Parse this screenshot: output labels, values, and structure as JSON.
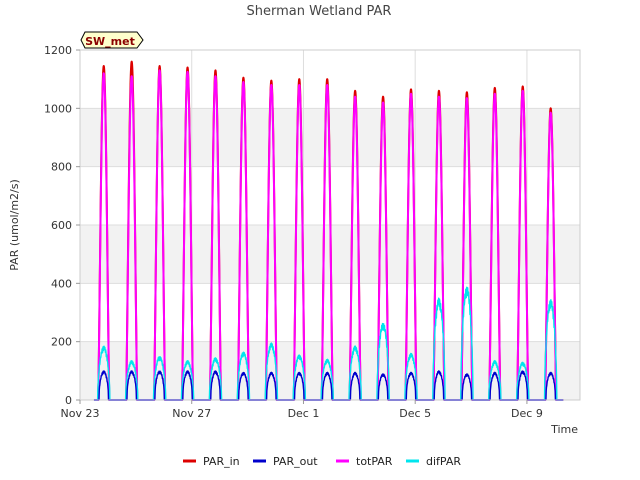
{
  "chart_data": {
    "type": "line",
    "title": "Sherman Wetland PAR",
    "xlabel": "Time",
    "ylabel": "PAR (umol/m2/s)",
    "badge": "SW_met",
    "x_start": "Nov 23",
    "x_end": "Dec 11",
    "xlim": [
      0,
      17.9
    ],
    "ylim": [
      0,
      1200
    ],
    "y_ticks": [
      0,
      200,
      400,
      600,
      800,
      1000,
      1200
    ],
    "x_ticks": [
      {
        "value": 0,
        "label": "Nov 23"
      },
      {
        "value": 4,
        "label": "Nov 27"
      },
      {
        "value": 8,
        "label": "Dec 1"
      },
      {
        "value": 12,
        "label": "Dec 5"
      },
      {
        "value": 16,
        "label": "Dec 9"
      }
    ],
    "grid": true,
    "legend_position": "bottom",
    "series": [
      {
        "name": "PAR_in",
        "color": "#dd0000"
      },
      {
        "name": "PAR_out",
        "color": "#0000cc"
      },
      {
        "name": "totPAR",
        "color": "#ff00ff"
      },
      {
        "name": "difPAR",
        "color": "#00e5ee"
      }
    ],
    "days": [
      {
        "noon": 0.85,
        "PAR_in": 1145,
        "PAR_out": 100,
        "totPAR": 1120,
        "difPAR": 185
      },
      {
        "noon": 1.85,
        "PAR_in": 1160,
        "PAR_out": 100,
        "totPAR": 1110,
        "difPAR": 135
      },
      {
        "noon": 2.85,
        "PAR_in": 1145,
        "PAR_out": 100,
        "totPAR": 1130,
        "difPAR": 150
      },
      {
        "noon": 3.85,
        "PAR_in": 1140,
        "PAR_out": 100,
        "totPAR": 1125,
        "difPAR": 135
      },
      {
        "noon": 4.85,
        "PAR_in": 1130,
        "PAR_out": 100,
        "totPAR": 1110,
        "difPAR": 145
      },
      {
        "noon": 5.85,
        "PAR_in": 1105,
        "PAR_out": 95,
        "totPAR": 1090,
        "difPAR": 165
      },
      {
        "noon": 6.85,
        "PAR_in": 1095,
        "PAR_out": 95,
        "totPAR": 1080,
        "difPAR": 195
      },
      {
        "noon": 7.85,
        "PAR_in": 1100,
        "PAR_out": 95,
        "totPAR": 1080,
        "difPAR": 155
      },
      {
        "noon": 8.85,
        "PAR_in": 1100,
        "PAR_out": 95,
        "totPAR": 1080,
        "difPAR": 140
      },
      {
        "noon": 9.85,
        "PAR_in": 1060,
        "PAR_out": 95,
        "totPAR": 1040,
        "difPAR": 185
      },
      {
        "noon": 10.85,
        "PAR_in": 1040,
        "PAR_out": 90,
        "totPAR": 1020,
        "difPAR": 265
      },
      {
        "noon": 11.85,
        "PAR_in": 1065,
        "PAR_out": 95,
        "totPAR": 1050,
        "difPAR": 160
      },
      {
        "noon": 12.85,
        "PAR_in": 1060,
        "PAR_out": 100,
        "totPAR": 1040,
        "difPAR": 350
      },
      {
        "noon": 13.85,
        "PAR_in": 1055,
        "PAR_out": 90,
        "totPAR": 1035,
        "difPAR": 390
      },
      {
        "noon": 14.85,
        "PAR_in": 1070,
        "PAR_out": 95,
        "totPAR": 1050,
        "difPAR": 135
      },
      {
        "noon": 15.85,
        "PAR_in": 1075,
        "PAR_out": 100,
        "totPAR": 1060,
        "difPAR": 130
      },
      {
        "noon": 16.85,
        "PAR_in": 1000,
        "PAR_out": 95,
        "totPAR": 985,
        "difPAR": 345
      }
    ]
  }
}
